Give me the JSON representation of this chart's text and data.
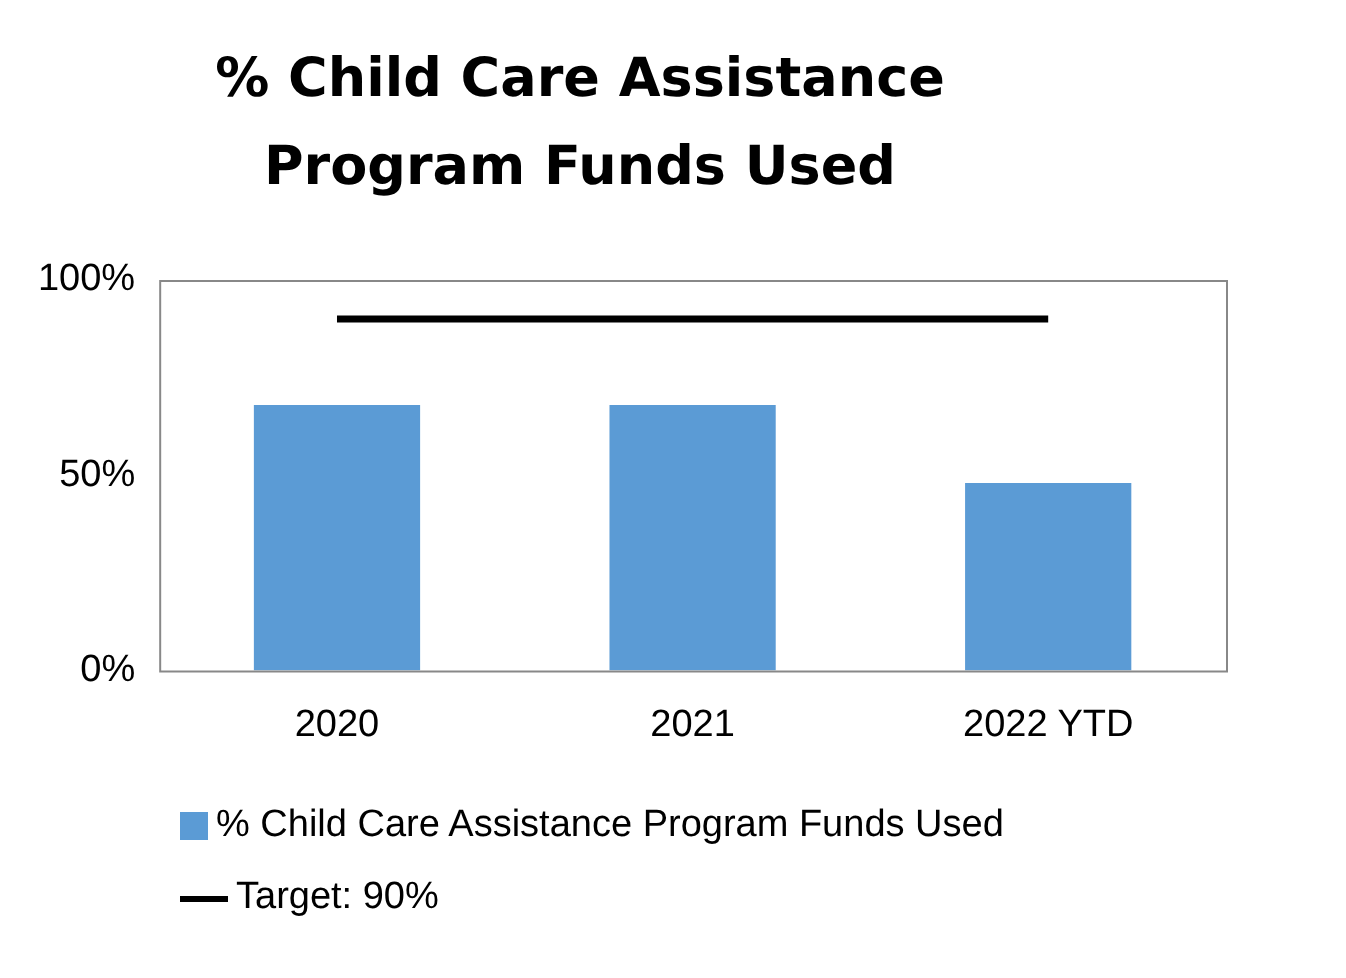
{
  "chart_data": {
    "type": "bar",
    "title": "% Child Care Assistance Program Funds Used",
    "categories": [
      "2020",
      "2021",
      "2022 YTD"
    ],
    "series": [
      {
        "name": "% Child Care Assistance Program Funds Used",
        "color": "#5b9bd5",
        "values": [
          68,
          68,
          48
        ]
      },
      {
        "name": "Target: 90%",
        "type": "line",
        "color": "#000000",
        "values": [
          90,
          90,
          90
        ]
      }
    ],
    "ylim": [
      0,
      100
    ],
    "yticks": [
      {
        "value": 0,
        "label": "0%"
      },
      {
        "value": 50,
        "label": "50%"
      },
      {
        "value": 100,
        "label": "100%"
      }
    ],
    "grid": false,
    "legend": "bottom",
    "marker": "none",
    "line_style": "solid"
  }
}
